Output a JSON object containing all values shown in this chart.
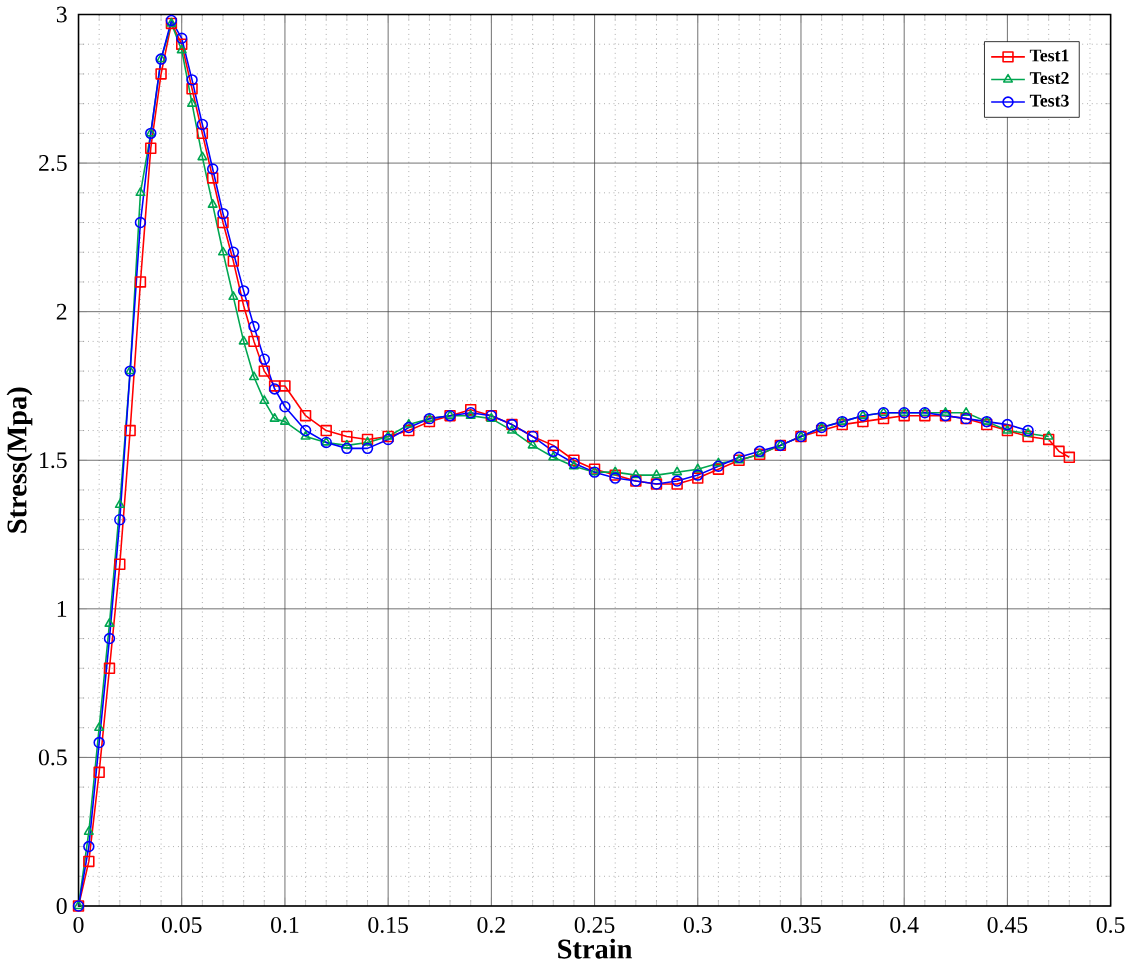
{
  "chart_data": {
    "type": "line",
    "xlabel": "Strain",
    "ylabel": "Stress(Mpa)",
    "xlim": [
      0,
      0.5
    ],
    "ylim": [
      0,
      3
    ],
    "xticks": [
      0,
      0.05,
      0.1,
      0.15,
      0.2,
      0.25,
      0.3,
      0.35,
      0.4,
      0.45,
      0.5
    ],
    "yticks": [
      0,
      0.5,
      1,
      1.5,
      2,
      2.5,
      3
    ],
    "grid": true,
    "legend": "top right",
    "x": [
      0,
      0.005,
      0.01,
      0.015,
      0.02,
      0.025,
      0.03,
      0.035,
      0.04,
      0.045,
      0.05,
      0.055,
      0.06,
      0.065,
      0.07,
      0.075,
      0.08,
      0.085,
      0.09,
      0.095,
      0.1,
      0.11,
      0.12,
      0.13,
      0.14,
      0.15,
      0.16,
      0.17,
      0.18,
      0.19,
      0.2,
      0.21,
      0.22,
      0.23,
      0.24,
      0.25,
      0.26,
      0.27,
      0.28,
      0.29,
      0.3,
      0.31,
      0.32,
      0.33,
      0.34,
      0.35,
      0.36,
      0.37,
      0.38,
      0.39,
      0.4,
      0.41,
      0.42,
      0.43,
      0.44,
      0.45,
      0.46,
      0.47,
      0.475,
      0.48
    ],
    "series": [
      {
        "name": "Test1",
        "color": "#ff0000",
        "marker": "square",
        "values": [
          0,
          0.15,
          0.45,
          0.8,
          1.15,
          1.6,
          2.1,
          2.55,
          2.8,
          2.97,
          2.9,
          2.75,
          2.6,
          2.45,
          2.3,
          2.17,
          2.02,
          1.9,
          1.8,
          1.75,
          1.75,
          1.65,
          1.6,
          1.58,
          1.57,
          1.58,
          1.6,
          1.63,
          1.65,
          1.67,
          1.65,
          1.62,
          1.58,
          1.55,
          1.5,
          1.47,
          1.45,
          1.43,
          1.42,
          1.42,
          1.44,
          1.47,
          1.5,
          1.52,
          1.55,
          1.58,
          1.6,
          1.62,
          1.63,
          1.64,
          1.65,
          1.65,
          1.65,
          1.64,
          1.62,
          1.6,
          1.58,
          1.57,
          1.53,
          1.51
        ]
      },
      {
        "name": "Test2",
        "color": "#00a651",
        "marker": "triangle",
        "values": [
          0,
          0.25,
          0.6,
          0.95,
          1.35,
          1.8,
          2.4,
          2.6,
          2.85,
          2.97,
          2.88,
          2.7,
          2.52,
          2.36,
          2.2,
          2.05,
          1.9,
          1.78,
          1.7,
          1.64,
          1.63,
          1.58,
          1.56,
          1.55,
          1.56,
          1.58,
          1.62,
          1.64,
          1.65,
          1.65,
          1.64,
          1.6,
          1.55,
          1.51,
          1.48,
          1.46,
          1.46,
          1.45,
          1.45,
          1.46,
          1.47,
          1.49,
          1.5,
          1.52,
          1.55,
          1.58,
          1.61,
          1.63,
          1.65,
          1.66,
          1.66,
          1.66,
          1.66,
          1.66,
          1.63,
          1.6,
          1.59,
          1.58,
          null,
          null
        ]
      },
      {
        "name": "Test3",
        "color": "#0000ff",
        "marker": "circle",
        "values": [
          0,
          0.2,
          0.55,
          0.9,
          1.3,
          1.8,
          2.3,
          2.6,
          2.85,
          2.98,
          2.92,
          2.78,
          2.63,
          2.48,
          2.33,
          2.2,
          2.07,
          1.95,
          1.84,
          1.74,
          1.68,
          1.6,
          1.56,
          1.54,
          1.54,
          1.57,
          1.61,
          1.64,
          1.65,
          1.66,
          1.65,
          1.62,
          1.58,
          1.53,
          1.49,
          1.46,
          1.44,
          1.43,
          1.42,
          1.43,
          1.45,
          1.48,
          1.51,
          1.53,
          1.55,
          1.58,
          1.61,
          1.63,
          1.65,
          1.66,
          1.66,
          1.66,
          1.65,
          1.64,
          1.63,
          1.62,
          1.6,
          null,
          null,
          null
        ]
      }
    ]
  }
}
